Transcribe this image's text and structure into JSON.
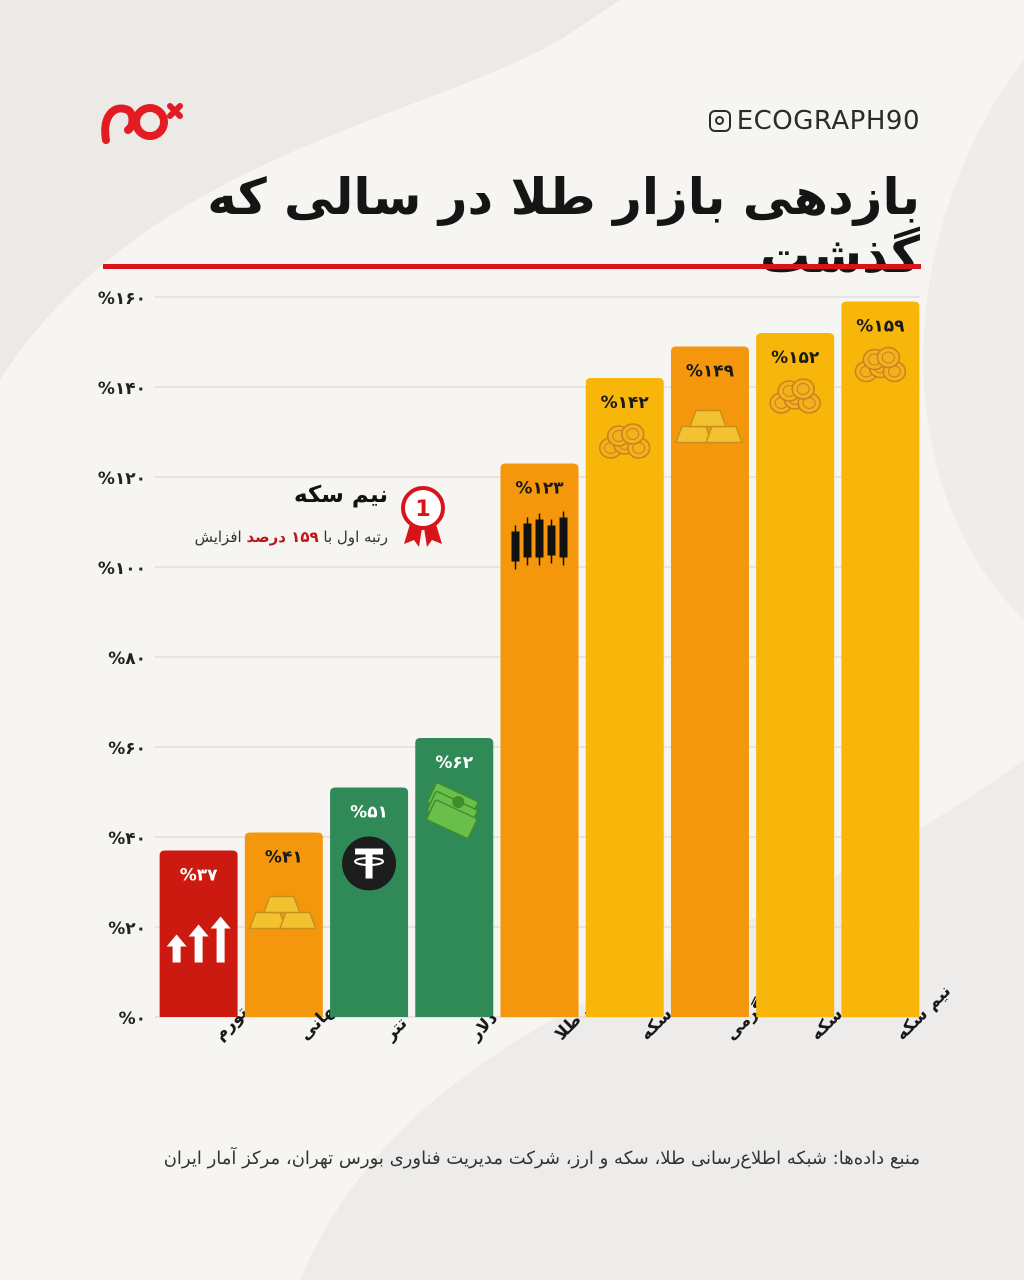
{
  "header": {
    "handle": "ECOGRAPH90",
    "title": "بازدهی بازار طلا در سالی که گذشت"
  },
  "callout": {
    "rank": "1",
    "title": "نیم سکه",
    "sub_prefix": "رتبه اول با",
    "sub_value": "۱۵۹ درصد",
    "sub_suffix": "افزایش"
  },
  "source": "منبع داده‌ها: شبکه اطلاع‌رسانی طلا، سکه و ارز، شرکت مدیریت فناوری بورس تهران، مرکز آمار ایران",
  "colors": {
    "accent_red": "#d7141b",
    "bar_red": "#cc1a10",
    "bar_orange": "#f5970c",
    "bar_yellow": "#f8b60b",
    "bar_green": "#2f8a58"
  },
  "chart_data": {
    "type": "bar",
    "ylim": [
      0,
      160
    ],
    "yticks": [
      0,
      20,
      40,
      60,
      80,
      100,
      120,
      140,
      160
    ],
    "ytick_labels": [
      "%۰",
      "%۲۰",
      "%۴۰",
      "%۶۰",
      "%۸۰",
      "%۱۰۰",
      "%۱۲۰",
      "%۱۴۰",
      "%۱۶۰"
    ],
    "grid": true,
    "categories": [
      "تورم",
      "انس جهانی",
      "تتر",
      "دلار",
      "صندوق‌های طلا",
      "ربع سکه",
      "طلای گرمی",
      "تمام سکه",
      "نیم سکه"
    ],
    "values": [
      37,
      41,
      51,
      62,
      123,
      142,
      149,
      152,
      159
    ],
    "value_labels": [
      "%۳۷",
      "%۴۱",
      "%۵۱",
      "%۶۲",
      "%۱۲۳",
      "%۱۴۲",
      "%۱۴۹",
      "%۱۵۲",
      "%۱۵۹"
    ],
    "bar_colors": [
      "#cc1a10",
      "#f5970c",
      "#2f8a58",
      "#2f8a58",
      "#f5970c",
      "#f8b60b",
      "#f5970c",
      "#f8b60b",
      "#f8b60b"
    ],
    "icons": [
      "arrows-up-icon",
      "gold-bars-icon",
      "tether-icon",
      "cash-icon",
      "candlestick-icon",
      "coins-icon",
      "gold-bars-icon",
      "coins-icon",
      "coins-icon"
    ]
  }
}
